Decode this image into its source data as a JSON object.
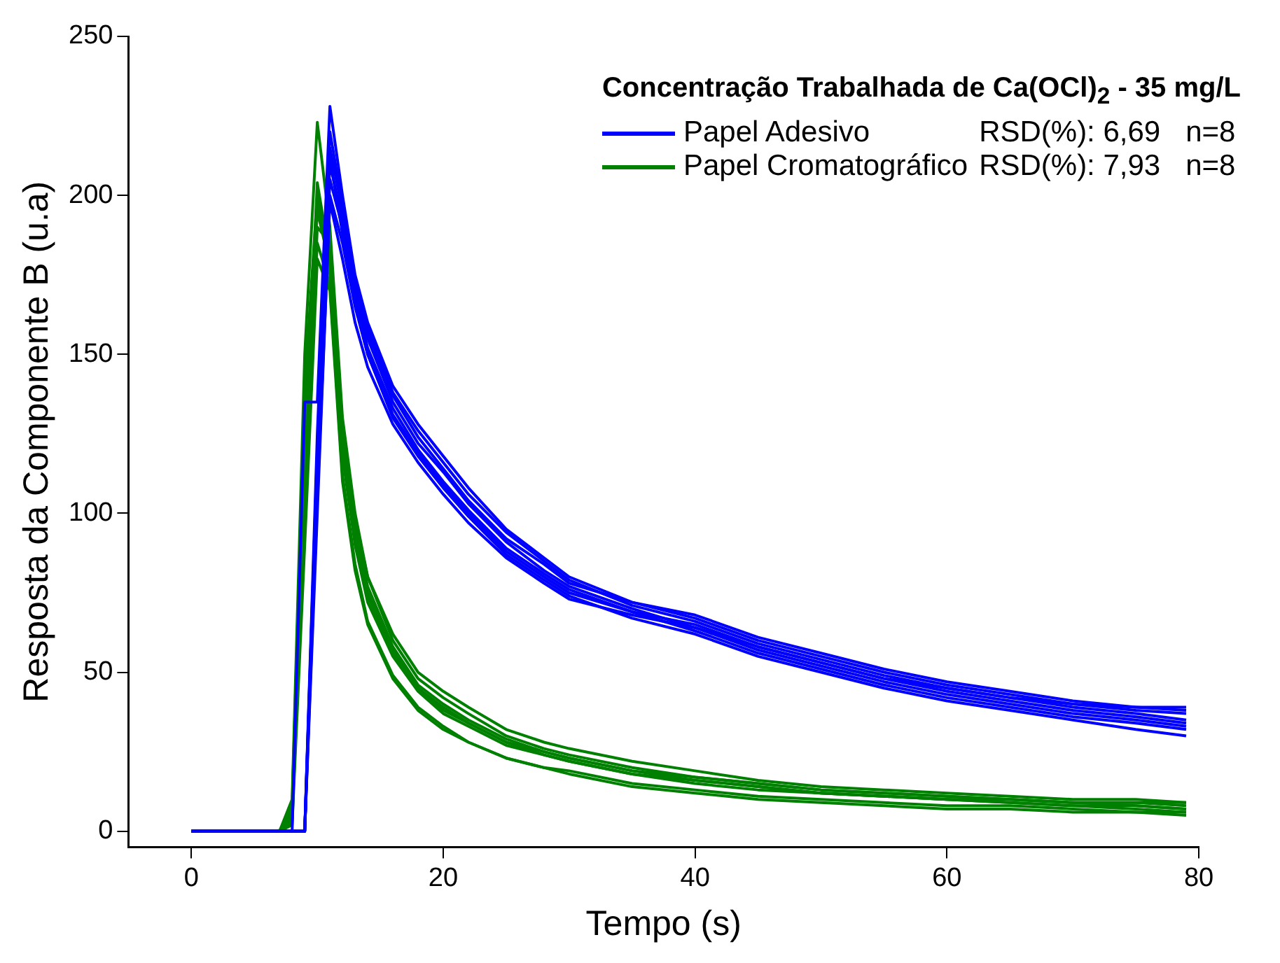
{
  "chart_data": {
    "type": "line",
    "xlabel": "Tempo (s)",
    "ylabel": "Resposta da Componente B (u.a)",
    "legend_title": "Concentração Trabalhada de Ca(OCl)$_{2}$ - 35 mg/L",
    "legend": "top right",
    "grid": false,
    "marker": "none",
    "line_style": "solid",
    "annotations": [
      "RSD(%): 6,69",
      "n=8",
      "RSD(%): 7,93",
      "n=8"
    ],
    "xlim": [
      -5,
      80
    ],
    "xticks": [
      0,
      20,
      40,
      60,
      80
    ],
    "ylim": [
      -5,
      250
    ],
    "yticks": [
      0,
      50,
      100,
      150,
      200,
      250
    ],
    "x": [
      0,
      7,
      8,
      9,
      10,
      11,
      12,
      13,
      14,
      16,
      18,
      20,
      22,
      25,
      28,
      30,
      35,
      40,
      45,
      50,
      55,
      60,
      65,
      70,
      75,
      79
    ],
    "series": [
      {
        "name": "Papel Adesivo",
        "color": "#0000ff",
        "values": [
          0,
          0,
          0,
          135,
          135,
          228,
          200,
          175,
          160,
          140,
          128,
          118,
          108,
          95,
          86,
          80,
          72,
          67,
          60,
          55,
          50,
          46,
          43,
          40,
          38,
          37
        ]
      },
      {
        "color": "#0000ff",
        "values": [
          0,
          0,
          0,
          0,
          120,
          215,
          195,
          172,
          158,
          138,
          126,
          116,
          106,
          94,
          85,
          79,
          71,
          66,
          59,
          54,
          49,
          45,
          42,
          39,
          37,
          35
        ]
      },
      {
        "color": "#0000ff",
        "values": [
          0,
          0,
          0,
          0,
          110,
          205,
          190,
          170,
          155,
          135,
          122,
          113,
          103,
          91,
          82,
          77,
          70,
          64,
          57,
          52,
          47,
          43,
          40,
          37,
          35,
          33
        ]
      },
      {
        "color": "#0000ff",
        "values": [
          0,
          0,
          0,
          0,
          100,
          200,
          185,
          165,
          150,
          130,
          118,
          108,
          99,
          87,
          79,
          74,
          67,
          62,
          55,
          50,
          45,
          41,
          38,
          35,
          32,
          30
        ]
      },
      {
        "color": "#0000ff",
        "values": [
          0,
          0,
          0,
          0,
          115,
          210,
          192,
          168,
          152,
          133,
          120,
          110,
          101,
          89,
          81,
          76,
          69,
          63,
          56,
          51,
          46,
          42,
          39,
          36,
          34,
          32
        ]
      },
      {
        "color": "#0000ff",
        "values": [
          0,
          0,
          0,
          0,
          105,
          198,
          180,
          160,
          146,
          128,
          116,
          106,
          97,
          86,
          78,
          73,
          68,
          64,
          58,
          53,
          48,
          45,
          42,
          40,
          39,
          38
        ]
      },
      {
        "color": "#0000ff",
        "values": [
          0,
          0,
          0,
          0,
          125,
          220,
          197,
          174,
          157,
          137,
          124,
          114,
          104,
          92,
          84,
          78,
          72,
          68,
          61,
          56,
          51,
          47,
          44,
          41,
          39,
          39
        ]
      },
      {
        "color": "#0000ff",
        "values": [
          0,
          0,
          0,
          0,
          118,
          212,
          188,
          166,
          150,
          131,
          119,
          109,
          100,
          88,
          80,
          75,
          69,
          65,
          58,
          53,
          48,
          44,
          41,
          38,
          36,
          34
        ]
      },
      {
        "name": "Papel Cromatográfico",
        "color": "#008000",
        "values": [
          0,
          0,
          10,
          150,
          223,
          190,
          130,
          100,
          80,
          60,
          48,
          42,
          37,
          30,
          26,
          24,
          20,
          17,
          15,
          13,
          12,
          11,
          10,
          9,
          9,
          8
        ]
      },
      {
        "color": "#008000",
        "values": [
          0,
          0,
          5,
          120,
          204,
          180,
          120,
          92,
          74,
          56,
          45,
          38,
          34,
          28,
          25,
          23,
          19,
          16,
          14,
          12,
          11,
          10,
          10,
          9,
          8,
          7
        ]
      },
      {
        "color": "#008000",
        "values": [
          0,
          0,
          8,
          140,
          200,
          175,
          118,
          90,
          72,
          55,
          44,
          37,
          33,
          27,
          24,
          22,
          18,
          15,
          13,
          12,
          11,
          10,
          9,
          8,
          8,
          7
        ]
      },
      {
        "color": "#008000",
        "values": [
          0,
          0,
          3,
          100,
          190,
          185,
          125,
          95,
          77,
          58,
          46,
          40,
          35,
          29,
          25,
          23,
          19,
          17,
          15,
          13,
          12,
          11,
          10,
          9,
          9,
          9
        ]
      },
      {
        "color": "#008000",
        "values": [
          0,
          0,
          6,
          130,
          195,
          178,
          122,
          93,
          75,
          57,
          45,
          39,
          34,
          28,
          24,
          22,
          18,
          16,
          14,
          12,
          11,
          10,
          9,
          8,
          7,
          6
        ]
      },
      {
        "color": "#008000",
        "values": [
          0,
          0,
          2,
          90,
          180,
          170,
          110,
          82,
          65,
          48,
          38,
          32,
          28,
          23,
          20,
          19,
          15,
          13,
          11,
          10,
          9,
          8,
          8,
          7,
          6,
          6
        ]
      },
      {
        "color": "#008000",
        "values": [
          0,
          0,
          4,
          110,
          185,
          172,
          112,
          84,
          66,
          49,
          39,
          33,
          28,
          23,
          20,
          18,
          14,
          12,
          10,
          9,
          8,
          7,
          7,
          6,
          6,
          5
        ]
      },
      {
        "color": "#008000",
        "values": [
          0,
          0,
          7,
          135,
          198,
          182,
          128,
          98,
          80,
          62,
          50,
          44,
          39,
          32,
          28,
          26,
          22,
          19,
          16,
          14,
          13,
          12,
          11,
          10,
          10,
          9
        ]
      }
    ]
  }
}
